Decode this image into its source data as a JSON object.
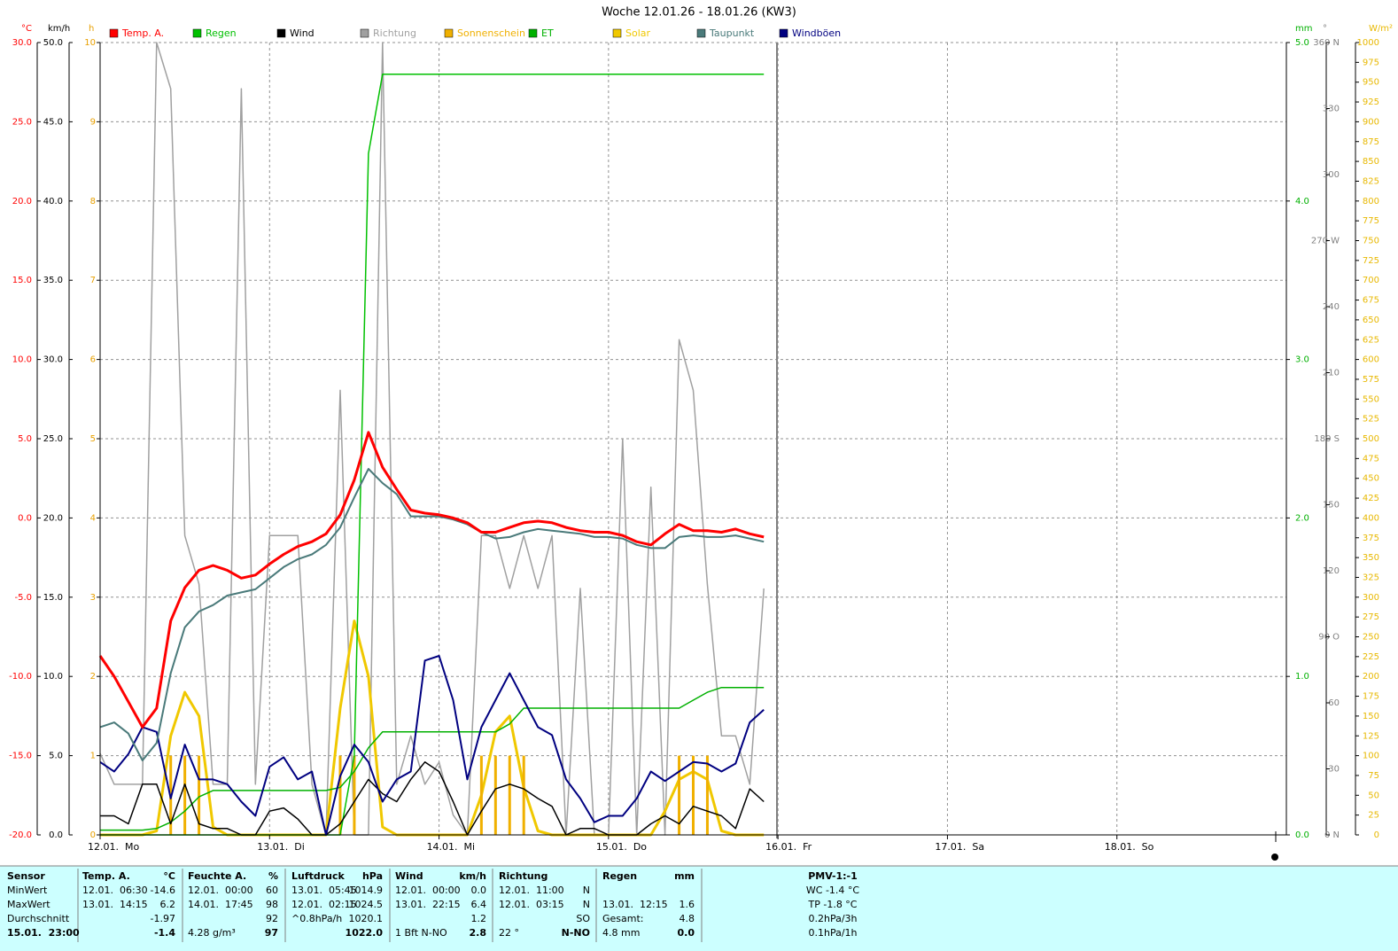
{
  "chart_data": {
    "type": "line",
    "title": "Woche 12.01.26 - 18.01.26 (KW3)",
    "x": [
      0,
      2,
      4,
      6,
      8,
      10,
      12,
      14,
      16,
      18,
      20,
      22,
      24,
      26,
      28,
      30,
      32,
      34,
      36,
      38,
      40,
      42,
      44,
      46,
      48,
      50,
      52,
      54,
      56,
      58,
      60,
      62,
      64,
      66,
      68,
      70,
      72,
      74,
      76,
      78,
      80,
      82,
      84,
      86,
      88,
      90,
      92,
      94
    ],
    "xlim": [
      0,
      168
    ],
    "xticks": [
      {
        "value": 0,
        "label": "12.01.  Mo"
      },
      {
        "value": 24,
        "label": "13.01.  Di"
      },
      {
        "value": 48,
        "label": "14.01.  Mi"
      },
      {
        "value": 72,
        "label": "15.01.  Do"
      },
      {
        "value": 96,
        "label": "16.01.  Fr"
      },
      {
        "value": 120,
        "label": "17.01.  Sa"
      },
      {
        "value": 144,
        "label": "18.01.  So"
      }
    ],
    "grid": true,
    "axes": [
      {
        "unit": "°C",
        "color": "#ff0000",
        "lim": [
          -20,
          30
        ],
        "ticks": [
          {
            "value": -20,
            "label": "-20.0"
          },
          {
            "value": -15,
            "label": "-15.0"
          },
          {
            "value": -10,
            "label": "-10.0"
          },
          {
            "value": -5,
            "label": "-5.0"
          },
          {
            "value": 0,
            "label": "0.0"
          },
          {
            "value": 5,
            "label": "5.0"
          },
          {
            "value": 10,
            "label": "10.0"
          },
          {
            "value": 15,
            "label": "15.0"
          },
          {
            "value": 20,
            "label": "20.0"
          },
          {
            "value": 25,
            "label": "25.0"
          },
          {
            "value": 30,
            "label": "30.0"
          }
        ]
      },
      {
        "unit": "km/h",
        "color": "#000000",
        "lim": [
          0,
          50
        ],
        "ticks": [
          {
            "value": 0,
            "label": "0.0"
          },
          {
            "value": 5,
            "label": "5.0"
          },
          {
            "value": 10,
            "label": "10.0"
          },
          {
            "value": 15,
            "label": "15.0"
          },
          {
            "value": 20,
            "label": "20.0"
          },
          {
            "value": 25,
            "label": "25.0"
          },
          {
            "value": 30,
            "label": "30.0"
          },
          {
            "value": 35,
            "label": "35.0"
          },
          {
            "value": 40,
            "label": "40.0"
          },
          {
            "value": 45,
            "label": "45.0"
          },
          {
            "value": 50,
            "label": "50.0"
          }
        ]
      },
      {
        "unit": "h",
        "color": "#e8a000",
        "lim": [
          0,
          10
        ],
        "ticks": [
          0,
          1,
          2,
          3,
          4,
          5,
          6,
          7,
          8,
          9,
          10
        ]
      },
      {
        "unit": "mm",
        "color": "#00b000",
        "lim": [
          0,
          5
        ],
        "ticks": [
          {
            "value": 0,
            "label": "0.0"
          },
          {
            "value": 1,
            "label": "1.0"
          },
          {
            "value": 2,
            "label": "2.0"
          },
          {
            "value": 3,
            "label": "3.0"
          },
          {
            "value": 4,
            "label": "4.0"
          },
          {
            "value": 5,
            "label": "5.0"
          }
        ]
      },
      {
        "unit": "°",
        "color": "#808080",
        "lim": [
          0,
          360
        ],
        "ticks": [
          {
            "value": 0,
            "label": "0 N"
          },
          30,
          60,
          {
            "value": 90,
            "label": "90 O"
          },
          120,
          150,
          {
            "value": 180,
            "label": "180 S"
          },
          210,
          240,
          {
            "value": 270,
            "label": "270 W"
          },
          300,
          330,
          {
            "value": 360,
            "label": "360 N"
          }
        ]
      },
      {
        "unit": "W/m²",
        "color": "#e8b800",
        "lim": [
          0,
          1000
        ],
        "ticks": [
          0,
          25,
          50,
          75,
          100,
          125,
          150,
          175,
          200,
          225,
          250,
          275,
          300,
          325,
          350,
          375,
          400,
          425,
          450,
          475,
          500,
          525,
          550,
          575,
          600,
          625,
          650,
          675,
          700,
          725,
          750,
          775,
          800,
          825,
          850,
          875,
          900,
          925,
          950,
          975,
          1000
        ]
      }
    ],
    "series": [
      {
        "name": "Temp. A.",
        "color": "#ff0000",
        "axis": 0,
        "values": [
          -8.7,
          -10,
          -11.6,
          -13.2,
          -12,
          -6.5,
          -4.4,
          -3.3,
          -3.0,
          -3.3,
          -3.8,
          -3.6,
          -2.9,
          -2.3,
          -1.8,
          -1.5,
          -1.0,
          0.2,
          2.4,
          5.4,
          3.2,
          1.8,
          0.5,
          0.3,
          0.2,
          0.0,
          -0.3,
          -0.9,
          -0.9,
          -0.6,
          -0.3,
          -0.2,
          -0.3,
          -0.6,
          -0.8,
          -0.9,
          -0.9,
          -1.1,
          -1.5,
          -1.7,
          -1.0,
          -0.4,
          -0.8,
          -0.8,
          -0.9,
          -0.7,
          -1.0,
          -1.2
        ]
      },
      {
        "name": "Regen",
        "color": "#00c000",
        "axis": 3,
        "values": [
          0,
          0,
          0,
          0,
          0,
          0,
          0,
          0,
          0,
          0,
          0,
          0,
          0,
          0,
          0,
          0,
          0,
          0,
          0.5,
          4.3,
          4.8,
          4.8,
          4.8,
          4.8,
          4.8,
          4.8,
          4.8,
          4.8,
          4.8,
          4.8,
          4.8,
          4.8,
          4.8,
          4.8,
          4.8,
          4.8,
          4.8,
          4.8,
          4.8,
          4.8,
          4.8,
          4.8,
          4.8,
          4.8,
          4.8,
          4.8,
          4.8,
          4.8
        ]
      },
      {
        "name": "Wind",
        "color": "#000000",
        "axis": 1,
        "values": [
          1.2,
          1.2,
          0.7,
          3.2,
          3.2,
          0.7,
          3.2,
          0.7,
          0.4,
          0.4,
          0,
          0,
          1.5,
          1.7,
          1.0,
          0,
          0,
          0.7,
          2.1,
          3.5,
          2.6,
          2.1,
          3.5,
          4.6,
          4.0,
          2.1,
          0,
          1.5,
          2.9,
          3.2,
          2.9,
          2.3,
          1.8,
          0,
          0.4,
          0.4,
          0,
          0,
          0,
          0.7,
          1.2,
          0.7,
          1.8,
          1.5,
          1.2,
          0.4,
          2.9,
          2.1
        ]
      },
      {
        "name": "Richtung",
        "color": "#a0a0a0",
        "axis": 4,
        "values": [
          37,
          23,
          23,
          23,
          360,
          339,
          136,
          114,
          23,
          23,
          339,
          23,
          136,
          136,
          136,
          23,
          0,
          202,
          0,
          0,
          360,
          23,
          45,
          23,
          33,
          9,
          0,
          136,
          136,
          112,
          136,
          112,
          136,
          0,
          112,
          0,
          0,
          180,
          0,
          158,
          0,
          225,
          202,
          114,
          45,
          45,
          23,
          112
        ]
      },
      {
        "name": "Sonnenschein",
        "color": "#f0b000",
        "axis": 2,
        "bars": true,
        "values": [
          0,
          0,
          0,
          0,
          0,
          1,
          1,
          1,
          0,
          0,
          0,
          0,
          0,
          0,
          0,
          0,
          0,
          1,
          1,
          0,
          0,
          0,
          0,
          0,
          0,
          0,
          0,
          1,
          1,
          1,
          1,
          0,
          0,
          0,
          0,
          0,
          0,
          0,
          0,
          0,
          0,
          1,
          1,
          1,
          0,
          0,
          0,
          0
        ]
      },
      {
        "name": "ET",
        "color": "#00b000",
        "axis": 3,
        "values": [
          0.03,
          0.03,
          0.03,
          0.03,
          0.04,
          0.08,
          0.15,
          0.24,
          0.28,
          0.28,
          0.28,
          0.28,
          0.28,
          0.28,
          0.28,
          0.28,
          0.28,
          0.3,
          0.4,
          0.55,
          0.65,
          0.65,
          0.65,
          0.65,
          0.65,
          0.65,
          0.65,
          0.65,
          0.65,
          0.7,
          0.8,
          0.8,
          0.8,
          0.8,
          0.8,
          0.8,
          0.8,
          0.8,
          0.8,
          0.8,
          0.8,
          0.8,
          0.85,
          0.9,
          0.93,
          0.93,
          0.93,
          0.93
        ]
      },
      {
        "name": "Solar",
        "color": "#f0c800",
        "axis": 5,
        "values": [
          0,
          0,
          0,
          0,
          5,
          125,
          180,
          150,
          10,
          0,
          0,
          0,
          0,
          0,
          0,
          0,
          0,
          160,
          270,
          200,
          10,
          0,
          0,
          0,
          0,
          0,
          0,
          50,
          130,
          150,
          60,
          5,
          0,
          0,
          0,
          0,
          0,
          0,
          0,
          0,
          30,
          70,
          80,
          70,
          5,
          0,
          0,
          0
        ]
      },
      {
        "name": "Taupunkt",
        "color": "#4a7a7a",
        "axis": 0,
        "values": [
          -13.2,
          -12.9,
          -13.6,
          -15.3,
          -14.2,
          -9.8,
          -6.9,
          -5.9,
          -5.5,
          -4.9,
          -4.7,
          -4.5,
          -3.8,
          -3.1,
          -2.6,
          -2.3,
          -1.7,
          -0.6,
          1.3,
          3.1,
          2.2,
          1.5,
          0.1,
          0.1,
          0.1,
          -0.1,
          -0.4,
          -0.9,
          -1.3,
          -1.2,
          -0.9,
          -0.7,
          -0.8,
          -0.9,
          -1.0,
          -1.2,
          -1.2,
          -1.3,
          -1.7,
          -1.9,
          -1.9,
          -1.2,
          -1.1,
          -1.2,
          -1.2,
          -1.1,
          -1.3,
          -1.5
        ]
      },
      {
        "name": "Windböen",
        "color": "#000080",
        "axis": 1,
        "values": [
          4.6,
          4.0,
          5.1,
          6.8,
          6.5,
          2.3,
          5.7,
          3.5,
          3.5,
          3.2,
          2.1,
          1.2,
          4.3,
          4.9,
          3.5,
          4.0,
          0,
          3.7,
          5.7,
          4.6,
          2.1,
          3.5,
          4.0,
          11.0,
          11.3,
          8.5,
          3.5,
          6.8,
          8.5,
          10.2,
          8.5,
          6.8,
          6.3,
          3.5,
          2.3,
          0.8,
          1.2,
          1.2,
          2.3,
          4.0,
          3.4,
          4.0,
          4.6,
          4.5,
          4.0,
          4.5,
          7.1,
          7.9
        ]
      }
    ]
  },
  "table": {
    "rows": [
      [
        "Sensor",
        "Temp. A.",
        "°C",
        "Feuchte A.",
        "%",
        "Luftdruck",
        "hPa",
        "Wind",
        "km/h",
        "Richtung",
        null,
        "Regen",
        "mm",
        "PMV-1:-1"
      ],
      [
        "MinWert",
        "12.01.  06:30",
        "-14.6",
        "12.01.  00:00",
        "60",
        "13.01.  05:45",
        "1014.9",
        "12.01.  00:00",
        "0.0",
        "12.01.  11:00",
        "N",
        null,
        null,
        "WC -1.4 °C"
      ],
      [
        "MaxWert",
        "13.01.  14:15",
        "6.2",
        "14.01.  17:45",
        "98",
        "12.01.  02:15",
        "1024.5",
        "13.01.  22:15",
        "6.4",
        "12.01.  03:15",
        "N",
        "13.01.  12:15",
        "1.6",
        "TP -1.8 °C"
      ],
      [
        "Durchschnitt",
        null,
        "-1.97",
        null,
        "92",
        "^0.8hPa/h",
        "1020.1",
        null,
        "1.2",
        null,
        "SO",
        "Gesamt:",
        "4.8",
        "0.2hPa/3h"
      ],
      [
        "15.01.  23:00",
        null,
        "-1.4",
        "4.28 g/m³",
        "97",
        null,
        "1022.0",
        "1 Bft N-NO",
        "2.8",
        "22 °",
        "N-NO",
        "4.8 mm",
        "0.0",
        "0.1hPa/1h"
      ]
    ]
  }
}
